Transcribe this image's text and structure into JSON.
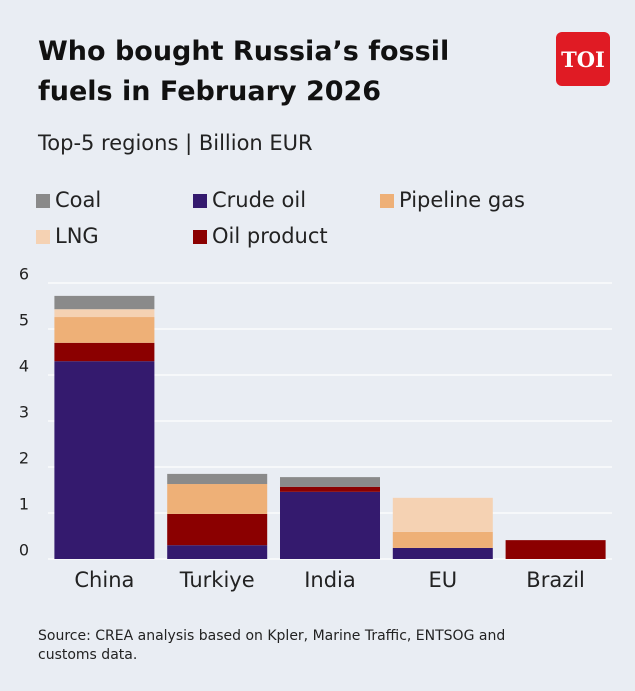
{
  "logo": "TOI",
  "chart_data": {
    "type": "stacked_bar",
    "title": "Who bought Russia’s fossil fuels in February 2026",
    "subtitle": "Top-5 regions | Billion EUR",
    "source": "Source: CREA analysis based on Kpler, Marine Traffic, ENTSOG and customs data.",
    "categories": [
      "China",
      "Turkiye",
      "India",
      "EU",
      "Brazil"
    ],
    "series": [
      {
        "name": "Coal",
        "color": "#8a8a8a",
        "values": [
          0.29,
          0.22,
          0.21,
          0,
          0
        ]
      },
      {
        "name": "Crude oil",
        "color": "#341a6e",
        "values": [
          4.3,
          0.3,
          1.46,
          0.24,
          0
        ]
      },
      {
        "name": "Pipeline gas",
        "color": "#eeb077",
        "values": [
          0.56,
          0.65,
          0,
          0.35,
          0
        ]
      },
      {
        "name": "LNG",
        "color": "#f5d2b3",
        "values": [
          0.17,
          0,
          0,
          0.74,
          0
        ]
      },
      {
        "name": "Oil product",
        "color": "#8b0000",
        "values": [
          0.4,
          0.68,
          0.11,
          0,
          0.41
        ]
      }
    ],
    "ylim": [
      0,
      6
    ],
    "yticks": [
      0,
      1,
      2,
      3,
      4,
      5,
      6
    ],
    "grid": true
  }
}
